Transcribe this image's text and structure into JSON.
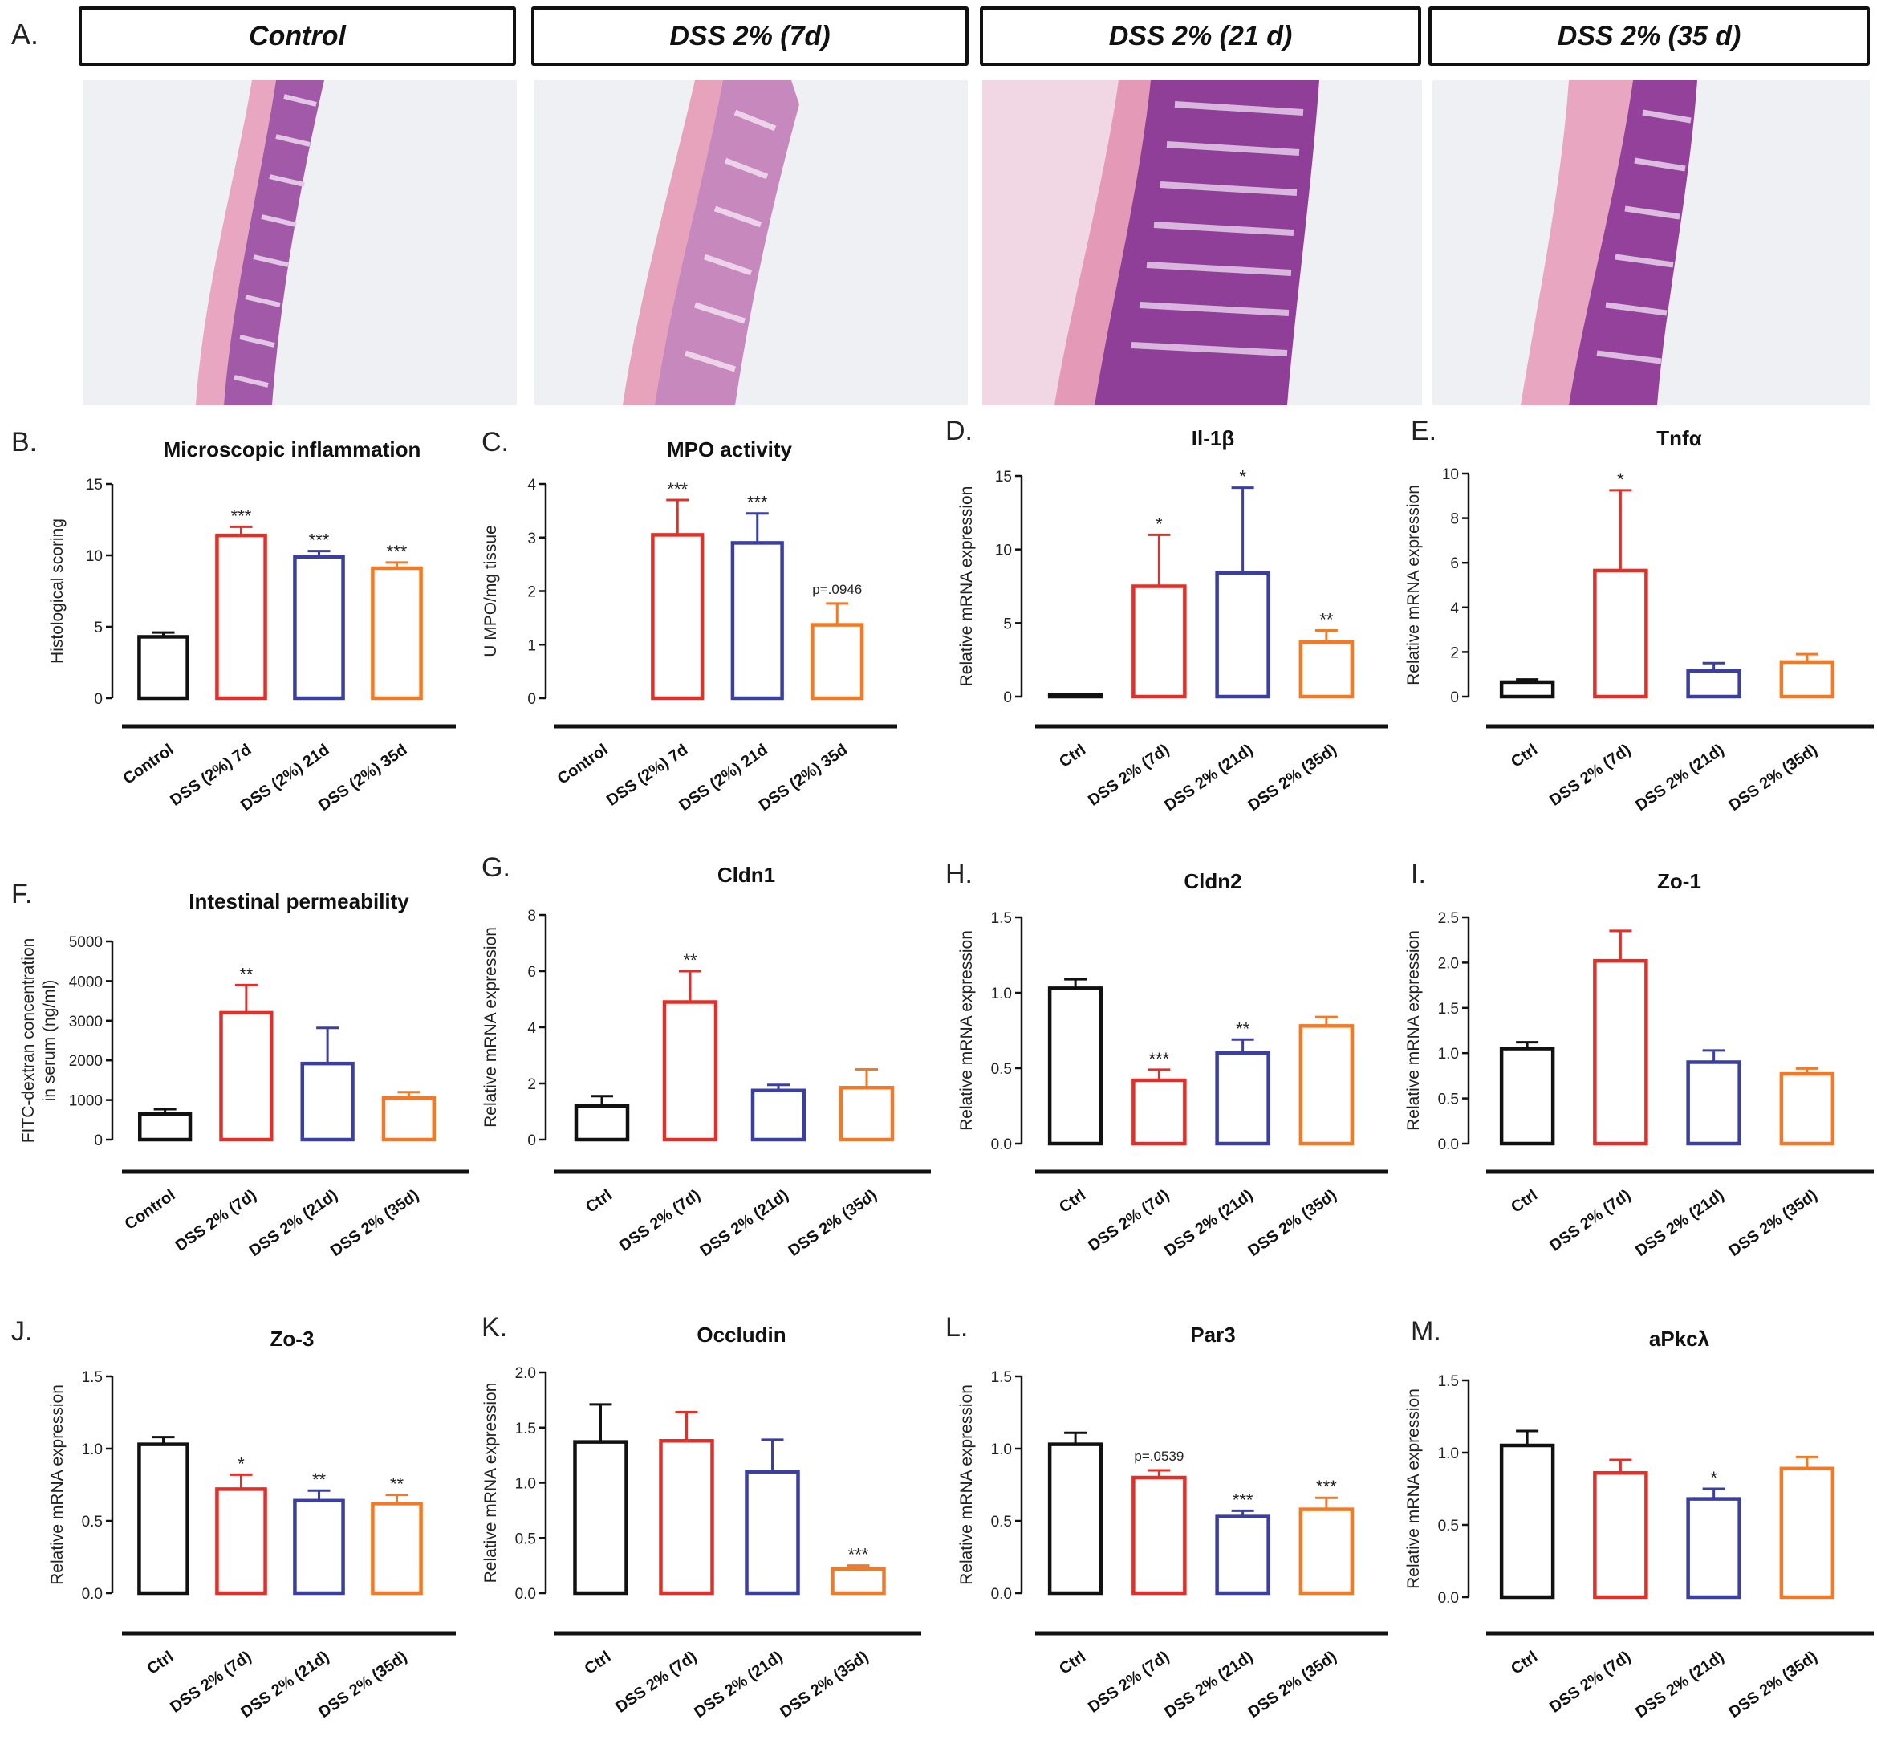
{
  "panel_a": {
    "letter": "A.",
    "conditions": [
      "Control",
      "DSS 2% (7d)",
      "DSS 2% (21 d)",
      "DSS 2% (35 d)"
    ]
  },
  "colors": {
    "control": "#111111",
    "d7": "#e0302a",
    "d21": "#3b3fa0",
    "d35": "#f07a28",
    "tissue_pink": "#e8a6c0",
    "tissue_purple": "#8a3c96",
    "background_slide": "#eef0f4"
  },
  "chart_data": [
    {
      "letter": "B.",
      "type": "bar",
      "title": "Microscopic inflammation",
      "ylabel": "Histological scoring",
      "ylim": [
        0,
        15
      ],
      "yticks": [
        "0",
        "5",
        "10",
        "15"
      ],
      "categories": [
        "Control",
        "DSS (2%) 7d",
        "DSS (2%) 21d",
        "DSS (2%) 35d"
      ],
      "values": [
        4.3,
        11.4,
        9.9,
        9.1
      ],
      "errors": [
        0.3,
        0.6,
        0.4,
        0.4
      ],
      "annotations": [
        "",
        "***",
        "***",
        "***"
      ]
    },
    {
      "letter": "C.",
      "type": "bar",
      "title": "MPO activity",
      "ylabel": "U MPO/mg tissue",
      "ylim": [
        0,
        4
      ],
      "yticks": [
        "0",
        "1",
        "2",
        "3",
        "4"
      ],
      "categories": [
        "Control",
        "DSS (2%) 7d",
        "DSS (2%) 21d",
        "DSS (2%) 35d"
      ],
      "values": [
        0,
        3.05,
        2.9,
        1.37
      ],
      "errors": [
        0,
        0.65,
        0.55,
        0.4
      ],
      "annotations": [
        "",
        "***",
        "***",
        "p=.0946"
      ]
    },
    {
      "letter": "D.",
      "type": "bar",
      "title": "Il-1β",
      "ylabel": "Relative mRNA expression",
      "ylim": [
        0,
        15
      ],
      "yticks": [
        "0",
        "5",
        "10",
        "15"
      ],
      "categories": [
        "Ctrl",
        "DSS 2% (7d)",
        "DSS 2% (21d)",
        "DSS 2% (35d)"
      ],
      "values": [
        0.15,
        7.5,
        8.4,
        3.7
      ],
      "errors": [
        0,
        3.5,
        5.8,
        0.8
      ],
      "annotations": [
        "",
        "*",
        "*",
        "**"
      ]
    },
    {
      "letter": "E.",
      "type": "bar",
      "title": "Tnfα",
      "ylabel": "Relative mRNA expression",
      "ylim": [
        0,
        10
      ],
      "yticks": [
        "0",
        "2",
        "4",
        "6",
        "8",
        "10"
      ],
      "categories": [
        "Ctrl",
        "DSS 2% (7d)",
        "DSS 2% (21d)",
        "DSS 2% (35d)"
      ],
      "values": [
        0.65,
        5.65,
        1.15,
        1.55
      ],
      "errors": [
        0.12,
        3.6,
        0.35,
        0.35
      ],
      "annotations": [
        "",
        "*",
        "",
        ""
      ]
    },
    {
      "letter": "F.",
      "type": "bar",
      "title": "Intestinal permeability",
      "ylabel": "FITC-dextran concentration in serum (ng/ml)",
      "ylabel_lines": [
        "FITC-dextran concentration",
        "in serum (ng/ml)"
      ],
      "ylim": [
        0,
        5000
      ],
      "yticks": [
        "0",
        "1000",
        "2000",
        "3000",
        "4000",
        "5000"
      ],
      "categories": [
        "Control",
        "DSS 2% (7d)",
        "DSS 2% (21d)",
        "DSS 2% (35d)"
      ],
      "values": [
        650,
        3200,
        1920,
        1050
      ],
      "errors": [
        120,
        700,
        900,
        150
      ],
      "annotations": [
        "",
        "**",
        "",
        ""
      ]
    },
    {
      "letter": "G.",
      "type": "bar",
      "title": "Cldn1",
      "ylabel": "Relative mRNA expression",
      "ylim": [
        0,
        8
      ],
      "yticks": [
        "0",
        "2",
        "4",
        "6",
        "8"
      ],
      "categories": [
        "Ctrl",
        "DSS 2% (7d)",
        "DSS 2% (21d)",
        "DSS 2% (35d)"
      ],
      "values": [
        1.2,
        4.9,
        1.75,
        1.85
      ],
      "errors": [
        0.35,
        1.1,
        0.2,
        0.65
      ],
      "annotations": [
        "",
        "**",
        "",
        ""
      ]
    },
    {
      "letter": "H.",
      "type": "bar",
      "title": "Cldn2",
      "ylabel": "Relative mRNA expression",
      "ylim": [
        0,
        1.5
      ],
      "yticks": [
        "0.0",
        "0.5",
        "1.0",
        "1.5"
      ],
      "categories": [
        "Ctrl",
        "DSS 2% (7d)",
        "DSS 2% (21d)",
        "DSS 2% (35d)"
      ],
      "values": [
        1.03,
        0.42,
        0.6,
        0.78
      ],
      "errors": [
        0.06,
        0.07,
        0.09,
        0.06
      ],
      "annotations": [
        "",
        "***",
        "**",
        ""
      ]
    },
    {
      "letter": "I.",
      "type": "bar",
      "title": "Zo-1",
      "ylabel": "Relative mRNA expression",
      "ylim": [
        0,
        2.5
      ],
      "yticks": [
        "0.0",
        "0.5",
        "1.0",
        "1.5",
        "2.0",
        "2.5"
      ],
      "categories": [
        "Ctrl",
        "DSS 2% (7d)",
        "DSS 2% (21d)",
        "DSS 2% (35d)"
      ],
      "values": [
        1.05,
        2.02,
        0.9,
        0.77
      ],
      "errors": [
        0.07,
        0.33,
        0.13,
        0.06
      ],
      "annotations": [
        "",
        "",
        "",
        ""
      ]
    },
    {
      "letter": "J.",
      "type": "bar",
      "title": "Zo-3",
      "ylabel": "Relative mRNA expression",
      "ylim": [
        0,
        1.5
      ],
      "yticks": [
        "0.0",
        "0.5",
        "1.0",
        "1.5"
      ],
      "categories": [
        "Ctrl",
        "DSS 2% (7d)",
        "DSS 2% (21d)",
        "DSS 2% (35d)"
      ],
      "values": [
        1.03,
        0.72,
        0.64,
        0.62
      ],
      "errors": [
        0.05,
        0.1,
        0.07,
        0.06
      ],
      "annotations": [
        "",
        "*",
        "**",
        "**"
      ]
    },
    {
      "letter": "K.",
      "type": "bar",
      "title": "Occludin",
      "ylabel": "Relative mRNA expression",
      "ylim": [
        0,
        2.0
      ],
      "yticks": [
        "0.0",
        "0.5",
        "1.0",
        "1.5",
        "2.0"
      ],
      "categories": [
        "Ctrl",
        "DSS 2% (7d)",
        "DSS 2% (21d)",
        "DSS 2% (35d)"
      ],
      "values": [
        1.37,
        1.38,
        1.1,
        0.22
      ],
      "errors": [
        0.34,
        0.26,
        0.29,
        0.03
      ],
      "annotations": [
        "",
        "",
        "",
        "***"
      ]
    },
    {
      "letter": "L.",
      "type": "bar",
      "title": "Par3",
      "ylabel": "Relative mRNA expression",
      "ylim": [
        0,
        1.5
      ],
      "yticks": [
        "0.0",
        "0.5",
        "1.0",
        "1.5"
      ],
      "categories": [
        "Ctrl",
        "DSS 2% (7d)",
        "DSS 2% (21d)",
        "DSS 2% (35d)"
      ],
      "values": [
        1.03,
        0.8,
        0.53,
        0.58
      ],
      "errors": [
        0.08,
        0.05,
        0.04,
        0.08
      ],
      "annotations": [
        "",
        "p=.0539",
        "***",
        "***"
      ]
    },
    {
      "letter": "M.",
      "type": "bar",
      "title": "aPkcλ",
      "ylabel": "Relative mRNA expression",
      "ylim": [
        0,
        1.5
      ],
      "yticks": [
        "0.0",
        "0.5",
        "1.0",
        "1.5"
      ],
      "categories": [
        "Ctrl",
        "DSS 2% (7d)",
        "DSS 2% (21d)",
        "DSS 2% (35d)"
      ],
      "values": [
        1.05,
        0.86,
        0.68,
        0.89
      ],
      "errors": [
        0.1,
        0.09,
        0.07,
        0.08
      ],
      "annotations": [
        "",
        "",
        "*",
        ""
      ]
    }
  ]
}
